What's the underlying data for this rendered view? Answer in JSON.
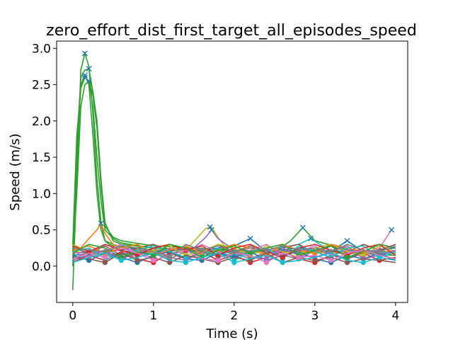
{
  "chart_data": {
    "type": "line",
    "title": "zero_effort_dist_first_target_all_episodes_speed",
    "xlabel": "Time (s)",
    "ylabel": "Speed (m/s)",
    "xlim": [
      -0.2,
      4.15
    ],
    "ylim": [
      -0.5,
      3.1
    ],
    "xticks": [
      0,
      1,
      2,
      3,
      4
    ],
    "yticks": [
      0.0,
      0.5,
      1.0,
      1.5,
      2.0,
      2.5,
      3.0
    ],
    "xtick_labels": [
      "0",
      "1",
      "2",
      "3",
      "4"
    ],
    "ytick_labels": [
      "0.0",
      "0.5",
      "1.0",
      "1.5",
      "2.0",
      "2.5",
      "3.0"
    ],
    "grid": false,
    "legend": "none",
    "markers": {
      "start": "circle",
      "peak": "x",
      "note": "circles mark local minima, x marks local maxima on each episode trace"
    },
    "series": [
      {
        "color": "#2ca02c",
        "x": [
          0,
          0.05,
          0.1,
          0.15,
          0.2,
          0.25,
          0.3,
          0.35,
          0.4,
          0.45,
          0.5,
          0.6,
          0.8,
          1.0,
          1.5,
          2.0,
          2.5,
          2.7,
          2.85,
          3.0,
          3.5,
          4.0
        ],
        "y": [
          -0.33,
          1.2,
          2.7,
          2.93,
          2.75,
          2.1,
          1.2,
          0.6,
          0.35,
          0.3,
          0.28,
          0.25,
          0.22,
          0.2,
          0.25,
          0.2,
          0.2,
          0.35,
          0.53,
          0.35,
          0.2,
          0.15
        ],
        "peaks": [
          [
            0.15,
            2.93
          ],
          [
            2.85,
            0.53
          ]
        ]
      },
      {
        "color": "#2ca02c",
        "x": [
          0,
          0.05,
          0.1,
          0.15,
          0.2,
          0.25,
          0.3,
          0.35,
          0.4,
          0.5,
          0.6,
          1.0,
          2.0,
          3.0,
          4.0
        ],
        "y": [
          0.0,
          1.4,
          2.5,
          2.63,
          2.5,
          1.8,
          1.0,
          0.5,
          0.35,
          0.3,
          0.27,
          0.22,
          0.2,
          0.2,
          0.18
        ],
        "peaks": [
          [
            0.15,
            2.63
          ]
        ]
      },
      {
        "color": "#2ca02c",
        "x": [
          0,
          0.05,
          0.1,
          0.15,
          0.2,
          0.25,
          0.3,
          0.35,
          0.4,
          0.5,
          0.6,
          1.0,
          2.0,
          3.0,
          4.0
        ],
        "y": [
          0.2,
          1.6,
          2.6,
          2.7,
          2.72,
          2.4,
          2.0,
          1.2,
          0.6,
          0.35,
          0.3,
          0.25,
          0.2,
          0.22,
          0.18
        ],
        "peaks": [
          [
            0.2,
            2.72
          ]
        ]
      },
      {
        "color": "#2ca02c",
        "x": [
          0,
          0.05,
          0.1,
          0.15,
          0.2,
          0.25,
          0.3,
          0.35,
          0.4,
          0.5,
          0.6,
          1.0,
          2.0,
          3.0,
          4.0
        ],
        "y": [
          0.3,
          1.8,
          2.45,
          2.6,
          2.55,
          2.2,
          1.5,
          0.9,
          0.5,
          0.38,
          0.32,
          0.25,
          0.18,
          0.2,
          0.15
        ],
        "peaks": [
          [
            0.15,
            2.6
          ]
        ]
      },
      {
        "color": "#2ca02c",
        "x": [
          0,
          0.05,
          0.1,
          0.15,
          0.2,
          0.25,
          0.3,
          0.35,
          0.4,
          0.5,
          0.6,
          1.0,
          2.0,
          3.0,
          4.0
        ],
        "y": [
          0.1,
          1.0,
          2.2,
          2.5,
          2.55,
          2.35,
          1.9,
          1.1,
          0.55,
          0.4,
          0.35,
          0.28,
          0.22,
          0.2,
          0.2
        ],
        "peaks": [
          [
            0.2,
            2.55
          ]
        ]
      },
      {
        "color": "#ff7f0e",
        "x": [
          0,
          0.1,
          0.2,
          0.3,
          0.35,
          0.4,
          0.5,
          0.6,
          1.0,
          1.5,
          2.0,
          2.5,
          3.0,
          3.5,
          4.0
        ],
        "y": [
          0.2,
          0.25,
          0.38,
          0.5,
          0.59,
          0.45,
          0.3,
          0.25,
          0.2,
          0.22,
          0.2,
          0.2,
          0.18,
          0.22,
          0.2
        ],
        "peaks": [
          [
            0.35,
            0.59
          ]
        ]
      },
      {
        "color": "#bcbd22",
        "x": [
          0,
          0.5,
          1.0,
          1.4,
          1.55,
          1.65,
          1.72,
          1.8,
          1.9,
          2.0,
          2.5,
          3.0,
          3.5,
          4.0
        ],
        "y": [
          0.2,
          0.15,
          0.2,
          0.22,
          0.4,
          0.52,
          0.54,
          0.4,
          0.25,
          0.2,
          0.18,
          0.2,
          0.18,
          0.2
        ],
        "peaks": [
          [
            1.7,
            0.54
          ]
        ]
      },
      {
        "color": "#9467bd",
        "x": [
          0,
          0.5,
          1.0,
          1.5,
          1.65,
          1.72,
          1.8,
          2.0,
          2.5,
          3.0,
          3.5,
          4.0
        ],
        "y": [
          0.18,
          0.22,
          0.18,
          0.25,
          0.4,
          0.5,
          0.38,
          0.22,
          0.2,
          0.22,
          0.2,
          0.18
        ],
        "peaks": [
          [
            1.72,
            0.5
          ]
        ]
      },
      {
        "color": "#1f77b4",
        "x": [
          0,
          0.4,
          0.8,
          1.2,
          1.6,
          2.0,
          2.2,
          2.4,
          2.8,
          3.2,
          3.4,
          3.6,
          4.0
        ],
        "y": [
          0.15,
          0.2,
          0.25,
          0.18,
          0.22,
          0.28,
          0.38,
          0.2,
          0.25,
          0.2,
          0.35,
          0.2,
          0.25
        ],
        "peaks": [
          [
            2.2,
            0.38
          ],
          [
            3.4,
            0.35
          ]
        ]
      },
      {
        "color": "#17becf",
        "x": [
          0,
          0.4,
          0.8,
          1.2,
          1.6,
          2.0,
          2.4,
          2.8,
          2.95,
          3.2,
          3.6,
          4.0
        ],
        "y": [
          0.12,
          0.18,
          0.15,
          0.22,
          0.18,
          0.15,
          0.22,
          0.3,
          0.38,
          0.2,
          0.22,
          0.18
        ],
        "peaks": [
          [
            2.95,
            0.38
          ]
        ]
      },
      {
        "color": "#d62728",
        "x": [
          0,
          0.2,
          0.4,
          0.6,
          0.8,
          1.0,
          1.2,
          1.4,
          1.6,
          1.8,
          2.0,
          2.2,
          2.4,
          2.6,
          2.8,
          3.0,
          3.2,
          3.4,
          3.6,
          3.8,
          4.0
        ],
        "y": [
          0.05,
          0.15,
          0.08,
          0.2,
          0.1,
          0.05,
          0.18,
          0.1,
          0.2,
          0.08,
          0.15,
          0.05,
          0.12,
          0.2,
          0.1,
          0.05,
          0.15,
          0.1,
          0.18,
          0.08,
          0.12
        ],
        "peaks": []
      },
      {
        "color": "#8c564b",
        "x": [
          0,
          0.2,
          0.4,
          0.6,
          0.8,
          1.0,
          1.2,
          1.4,
          1.6,
          1.8,
          2.0,
          2.2,
          2.4,
          2.6,
          2.8,
          3.0,
          3.2,
          3.4,
          3.6,
          3.8,
          4.0
        ],
        "y": [
          0.25,
          0.18,
          0.28,
          0.15,
          0.25,
          0.3,
          0.2,
          0.28,
          0.15,
          0.3,
          0.2,
          0.28,
          0.18,
          0.25,
          0.3,
          0.18,
          0.28,
          0.2,
          0.3,
          0.22,
          0.3
        ],
        "peaks": []
      },
      {
        "color": "#e377c2",
        "x": [
          0,
          0.2,
          0.4,
          0.6,
          0.8,
          1.0,
          1.2,
          1.4,
          1.6,
          1.8,
          2.0,
          2.2,
          2.4,
          2.6,
          2.8,
          3.0,
          3.2,
          3.4,
          3.6,
          3.8,
          3.95
        ],
        "y": [
          0.2,
          0.12,
          0.22,
          0.3,
          0.18,
          0.12,
          0.25,
          0.18,
          0.3,
          0.2,
          0.12,
          0.22,
          0.3,
          0.15,
          0.2,
          0.28,
          0.15,
          0.22,
          0.12,
          0.25,
          0.5
        ],
        "peaks": [
          [
            3.95,
            0.5
          ]
        ]
      },
      {
        "color": "#7f7f7f",
        "x": [
          0,
          0.2,
          0.4,
          0.6,
          0.8,
          1.0,
          1.2,
          1.4,
          1.6,
          1.8,
          2.0,
          2.2,
          2.4,
          2.6,
          2.8,
          3.0,
          3.2,
          3.4,
          3.6,
          3.8,
          4.0
        ],
        "y": [
          0.1,
          0.2,
          0.15,
          0.1,
          0.22,
          0.18,
          0.1,
          0.2,
          0.25,
          0.12,
          0.18,
          0.1,
          0.2,
          0.15,
          0.1,
          0.22,
          0.18,
          0.1,
          0.2,
          0.15,
          0.1
        ],
        "peaks": []
      },
      {
        "color": "#bcbd22",
        "x": [
          0,
          0.2,
          0.4,
          0.6,
          0.8,
          1.0,
          1.2,
          1.4,
          1.6,
          1.8,
          2.0,
          2.2,
          2.4,
          2.6,
          2.8,
          3.0,
          3.2,
          3.4,
          3.6,
          3.8,
          4.0
        ],
        "y": [
          0.3,
          0.2,
          0.12,
          0.25,
          0.3,
          0.2,
          0.28,
          0.15,
          0.2,
          0.3,
          0.25,
          0.15,
          0.28,
          0.2,
          0.12,
          0.25,
          0.3,
          0.2,
          0.15,
          0.28,
          0.2
        ],
        "peaks": []
      },
      {
        "color": "#1f77b4",
        "x": [
          0,
          0.2,
          0.4,
          0.6,
          0.8,
          1.0,
          1.2,
          1.4,
          1.6,
          1.8,
          2.0,
          2.2,
          2.4,
          2.6,
          2.8,
          3.0,
          3.2,
          3.4,
          3.6,
          3.8,
          4.0
        ],
        "y": [
          0.15,
          0.08,
          0.18,
          0.12,
          0.05,
          0.15,
          0.2,
          0.1,
          0.08,
          0.18,
          0.12,
          0.2,
          0.08,
          0.15,
          0.2,
          0.1,
          0.05,
          0.15,
          0.1,
          0.18,
          0.08
        ],
        "peaks": []
      },
      {
        "color": "#ff7f0e",
        "x": [
          0,
          0.2,
          0.4,
          0.6,
          0.8,
          1.0,
          1.2,
          1.4,
          1.6,
          1.8,
          2.0,
          2.2,
          2.4,
          2.6,
          2.8,
          3.0,
          3.2,
          3.4,
          3.6,
          3.8,
          4.0
        ],
        "y": [
          0.22,
          0.28,
          0.18,
          0.25,
          0.3,
          0.15,
          0.22,
          0.28,
          0.18,
          0.22,
          0.3,
          0.25,
          0.15,
          0.3,
          0.22,
          0.18,
          0.3,
          0.25,
          0.2,
          0.3,
          0.25
        ],
        "peaks": []
      },
      {
        "color": "#9467bd",
        "x": [
          0,
          0.2,
          0.4,
          0.6,
          0.8,
          1.0,
          1.2,
          1.4,
          1.6,
          1.8,
          2.0,
          2.2,
          2.4,
          2.6,
          2.8,
          3.0,
          3.2,
          3.4,
          3.6,
          3.8,
          4.0
        ],
        "y": [
          0.08,
          0.15,
          0.22,
          0.1,
          0.18,
          0.25,
          0.12,
          0.08,
          0.2,
          0.15,
          0.22,
          0.12,
          0.1,
          0.25,
          0.15,
          0.12,
          0.2,
          0.28,
          0.1,
          0.15,
          0.22
        ],
        "peaks": []
      },
      {
        "color": "#17becf",
        "x": [
          0,
          0.2,
          0.4,
          0.6,
          0.8,
          1.0,
          1.2,
          1.4,
          1.6,
          1.8,
          2.0,
          2.2,
          2.4,
          2.6,
          2.8,
          3.0,
          3.2,
          3.4,
          3.6,
          3.8,
          4.0
        ],
        "y": [
          0.2,
          0.25,
          0.1,
          0.15,
          0.22,
          0.28,
          0.2,
          0.12,
          0.15,
          0.25,
          0.08,
          0.2,
          0.25,
          0.1,
          0.28,
          0.2,
          0.12,
          0.25,
          0.28,
          0.12,
          0.2
        ],
        "peaks": []
      },
      {
        "color": "#d62728",
        "x": [
          0,
          0.2,
          0.4,
          0.6,
          0.8,
          1.0,
          1.2,
          1.4,
          1.6,
          1.8,
          2.0,
          2.2,
          2.4,
          2.6,
          2.8,
          3.0,
          3.2,
          3.4,
          3.6,
          3.8,
          4.0
        ],
        "y": [
          0.28,
          0.2,
          0.3,
          0.22,
          0.15,
          0.25,
          0.3,
          0.22,
          0.28,
          0.15,
          0.25,
          0.3,
          0.2,
          0.12,
          0.25,
          0.3,
          0.22,
          0.15,
          0.25,
          0.3,
          0.15
        ],
        "peaks": []
      },
      {
        "color": "#8c564b",
        "x": [
          0,
          0.2,
          0.4,
          0.6,
          0.8,
          1.0,
          1.2,
          1.4,
          1.6,
          1.8,
          2.0,
          2.2,
          2.4,
          2.6,
          2.8,
          3.0,
          3.2,
          3.4,
          3.6,
          3.8,
          4.0
        ],
        "y": [
          0.12,
          0.1,
          0.05,
          0.18,
          0.08,
          0.12,
          0.05,
          0.15,
          0.1,
          0.05,
          0.12,
          0.08,
          0.18,
          0.05,
          0.12,
          0.08,
          0.12,
          0.05,
          0.1,
          0.08,
          0.05
        ],
        "peaks": []
      },
      {
        "color": "#2ca02c",
        "x": [
          0,
          0.2,
          0.4,
          0.6,
          0.8,
          1.0,
          1.2,
          1.4,
          1.6,
          1.8,
          2.0,
          2.2,
          2.4,
          2.6,
          2.8,
          3.0,
          3.2,
          3.4,
          3.6,
          3.8,
          4.0
        ],
        "y": [
          0.18,
          0.3,
          0.25,
          0.12,
          0.2,
          0.15,
          0.3,
          0.25,
          0.12,
          0.22,
          0.28,
          0.18,
          0.25,
          0.3,
          0.15,
          0.22,
          0.28,
          0.12,
          0.2,
          0.3,
          0.25
        ],
        "peaks": []
      },
      {
        "color": "#e377c2",
        "x": [
          0,
          0.2,
          0.4,
          0.6,
          0.8,
          1.0,
          1.2,
          1.4,
          1.6,
          1.8,
          2.0,
          2.2,
          2.4,
          2.6,
          2.8,
          3.0,
          3.2,
          3.4,
          3.6,
          3.8,
          4.0
        ],
        "y": [
          0.1,
          0.18,
          0.12,
          0.25,
          0.18,
          0.08,
          0.15,
          0.22,
          0.1,
          0.08,
          0.18,
          0.15,
          0.05,
          0.18,
          0.12,
          0.15,
          0.08,
          0.18,
          0.22,
          0.15,
          0.1
        ],
        "peaks": []
      },
      {
        "color": "#7f7f7f",
        "x": [
          0,
          0.2,
          0.4,
          0.6,
          0.8,
          1.0,
          1.2,
          1.4,
          1.6,
          1.8,
          2.0,
          2.2,
          2.4,
          2.6,
          2.8,
          3.0,
          3.2,
          3.4,
          3.6,
          3.8,
          4.0
        ],
        "y": [
          0.25,
          0.22,
          0.2,
          0.28,
          0.25,
          0.2,
          0.12,
          0.3,
          0.22,
          0.28,
          0.2,
          0.25,
          0.22,
          0.28,
          0.22,
          0.25,
          0.2,
          0.3,
          0.22,
          0.2,
          0.28
        ],
        "peaks": []
      },
      {
        "color": "#17becf",
        "x": [
          0,
          0.2,
          0.4,
          0.6,
          0.8,
          1.0,
          1.2,
          1.4,
          1.6,
          1.8,
          2.0,
          2.2,
          2.4,
          2.6,
          2.8,
          3.0,
          3.2,
          3.4,
          3.6,
          3.8,
          4.0
        ],
        "y": [
          0.05,
          0.12,
          0.18,
          0.08,
          0.12,
          0.18,
          0.08,
          0.05,
          0.12,
          0.18,
          0.05,
          0.1,
          0.15,
          0.05,
          0.08,
          0.12,
          0.18,
          0.08,
          0.05,
          0.12,
          0.08
        ],
        "peaks": []
      }
    ]
  }
}
